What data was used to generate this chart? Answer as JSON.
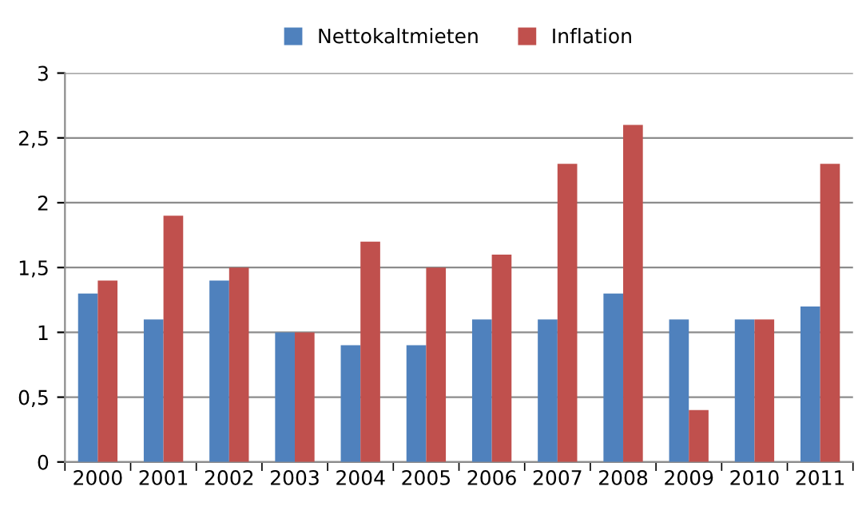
{
  "chart_data": {
    "type": "bar",
    "categories": [
      "2000",
      "2001",
      "2002",
      "2003",
      "2004",
      "2005",
      "2006",
      "2007",
      "2008",
      "2009",
      "2010",
      "2011"
    ],
    "series": [
      {
        "name": "Nettokaltmieten",
        "color": "#4f81bd",
        "values": [
          1.3,
          1.1,
          1.4,
          1.0,
          0.9,
          0.9,
          1.1,
          1.1,
          1.3,
          1.1,
          1.1,
          1.2
        ]
      },
      {
        "name": "Inflation",
        "color": "#c0504d",
        "values": [
          1.4,
          1.9,
          1.5,
          1.0,
          1.7,
          1.5,
          1.6,
          2.3,
          2.6,
          0.4,
          1.1,
          2.3
        ]
      }
    ],
    "ylim": [
      0,
      3
    ],
    "yticks": [
      0,
      {
        "value": 0.5,
        "label": "0,5"
      },
      1,
      {
        "value": 1.5,
        "label": "1,5"
      },
      2,
      {
        "value": 2.5,
        "label": "2,5"
      },
      3
    ],
    "grid": "y",
    "legend": "top"
  }
}
